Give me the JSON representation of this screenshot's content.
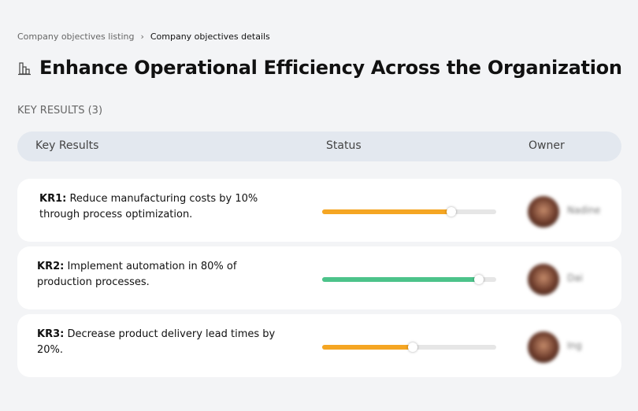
{
  "breadcrumb": {
    "parent": "Company objectives listing",
    "separator": "›",
    "current": "Company objectives details"
  },
  "title": "Enhance Operational Efficiency Across the Organization",
  "title_icon": "buildings-icon",
  "key_results_count_label": "KEY RESULTS (3)",
  "table": {
    "headers": [
      "Key Results",
      "Status",
      "Owner"
    ]
  },
  "rows": [
    {
      "label": "KR1:",
      "text": "Reduce manufacturing costs by 10% through process optimization.",
      "progress": 74,
      "color": "#f5a623",
      "owner": "Nadine"
    },
    {
      "label": "KR2:",
      "text": "Implement automation in 80% of production processes.",
      "progress": 90,
      "color": "#4cc38a",
      "owner": "Dai"
    },
    {
      "label": "KR3:",
      "text": "Decrease product delivery lead times by 20%.",
      "progress": 52,
      "color": "#f5a623",
      "owner": "Ing"
    }
  ]
}
